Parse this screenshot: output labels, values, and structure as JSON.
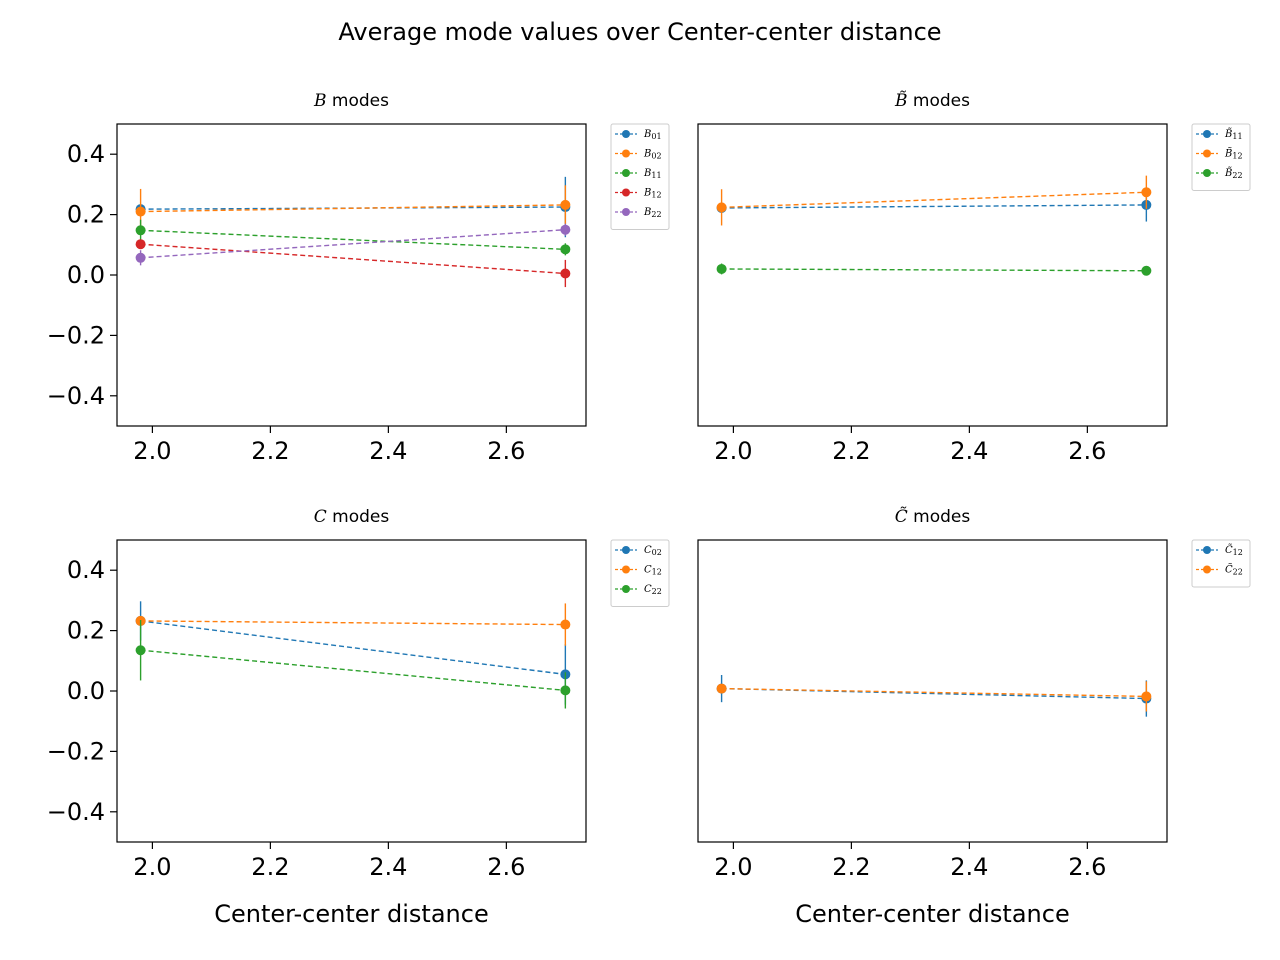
{
  "title": "Average mode values over Center-center distance",
  "chart_data": [
    {
      "type": "line",
      "title": "B modes",
      "title_symbol": "B",
      "title_rest": " modes",
      "xlabel": "",
      "x": [
        1.98,
        2.7
      ],
      "xlim": [
        1.94,
        2.735
      ],
      "ylim": [
        -0.5,
        0.5
      ],
      "xticks": [
        "2.0",
        "2.2",
        "2.4",
        "2.6"
      ],
      "yticks": [
        "0.4",
        "0.2",
        "0.0",
        "−0.2",
        "−0.4"
      ],
      "show_y_ticks": true,
      "legend_placement": "outside-right",
      "series": [
        {
          "name": "B01",
          "label_main": "B",
          "label_sub": "01",
          "color": "#1f77b4",
          "values": [
            0.218,
            0.225
          ],
          "errors": [
            0.012,
            0.1
          ]
        },
        {
          "name": "B02",
          "label_main": "B",
          "label_sub": "02",
          "color": "#ff7f0e",
          "values": [
            0.21,
            0.232
          ],
          "errors": [
            0.075,
            0.065
          ]
        },
        {
          "name": "B11",
          "label_main": "B",
          "label_sub": "11",
          "color": "#2ca02c",
          "values": [
            0.148,
            0.085
          ],
          "errors": [
            0.035,
            0.02
          ]
        },
        {
          "name": "B12",
          "label_main": "B",
          "label_sub": "12",
          "color": "#d62728",
          "values": [
            0.102,
            0.005
          ],
          "errors": [
            0.01,
            0.045
          ]
        },
        {
          "name": "B22",
          "label_main": "B",
          "label_sub": "22",
          "color": "#9467bd",
          "values": [
            0.057,
            0.15
          ],
          "errors": [
            0.025,
            0.02
          ]
        }
      ]
    },
    {
      "type": "line",
      "title": "B̃ modes",
      "title_symbol": "B̃",
      "title_rest": " modes",
      "xlabel": "",
      "x": [
        1.98,
        2.7
      ],
      "xlim": [
        1.94,
        2.735
      ],
      "ylim": [
        -0.5,
        0.5
      ],
      "xticks": [
        "2.0",
        "2.2",
        "2.4",
        "2.6"
      ],
      "yticks": [],
      "show_y_ticks": false,
      "legend_placement": "outside-right",
      "series": [
        {
          "name": "B̃11",
          "label_main": "B̃",
          "label_sub": "11",
          "color": "#1f77b4",
          "values": [
            0.222,
            0.232
          ],
          "errors": [
            0.012,
            0.055
          ]
        },
        {
          "name": "B̃12",
          "label_main": "B̃",
          "label_sub": "12",
          "color": "#ff7f0e",
          "values": [
            0.224,
            0.274
          ],
          "errors": [
            0.06,
            0.055
          ]
        },
        {
          "name": "B̃22",
          "label_main": "B̃",
          "label_sub": "22",
          "color": "#2ca02c",
          "values": [
            0.02,
            0.014
          ],
          "errors": [
            0.018,
            0.012
          ]
        }
      ]
    },
    {
      "type": "line",
      "title": "C modes",
      "title_symbol": "C",
      "title_rest": " modes",
      "xlabel": "Center-center distance",
      "x": [
        1.98,
        2.7
      ],
      "xlim": [
        1.94,
        2.735
      ],
      "ylim": [
        -0.5,
        0.5
      ],
      "xticks": [
        "2.0",
        "2.2",
        "2.4",
        "2.6"
      ],
      "yticks": [
        "0.4",
        "0.2",
        "0.0",
        "−0.2",
        "−0.4"
      ],
      "show_y_ticks": true,
      "legend_placement": "outside-right",
      "series": [
        {
          "name": "C02",
          "label_main": "C",
          "label_sub": "02",
          "color": "#1f77b4",
          "values": [
            0.232,
            0.055
          ],
          "errors": [
            0.065,
            0.1
          ]
        },
        {
          "name": "C12",
          "label_main": "C",
          "label_sub": "12",
          "color": "#ff7f0e",
          "values": [
            0.232,
            0.22
          ],
          "errors": [
            0.01,
            0.07
          ]
        },
        {
          "name": "C22",
          "label_main": "C",
          "label_sub": "22",
          "color": "#2ca02c",
          "values": [
            0.135,
            0.002
          ],
          "errors": [
            0.1,
            0.06
          ]
        }
      ]
    },
    {
      "type": "line",
      "title": "C̃ modes",
      "title_symbol": "C̃",
      "title_rest": " modes",
      "xlabel": "Center-center distance",
      "x": [
        1.98,
        2.7
      ],
      "xlim": [
        1.94,
        2.735
      ],
      "ylim": [
        -0.5,
        0.5
      ],
      "xticks": [
        "2.0",
        "2.2",
        "2.4",
        "2.6"
      ],
      "yticks": [],
      "show_y_ticks": false,
      "legend_placement": "outside-right",
      "series": [
        {
          "name": "C̃12",
          "label_main": "C̃",
          "label_sub": "12",
          "color": "#1f77b4",
          "values": [
            0.008,
            -0.025
          ],
          "errors": [
            0.045,
            0.06
          ]
        },
        {
          "name": "C̃22",
          "label_main": "C̃",
          "label_sub": "22",
          "color": "#ff7f0e",
          "values": [
            0.008,
            -0.018
          ],
          "errors": [
            0.01,
            0.05
          ]
        }
      ]
    }
  ]
}
